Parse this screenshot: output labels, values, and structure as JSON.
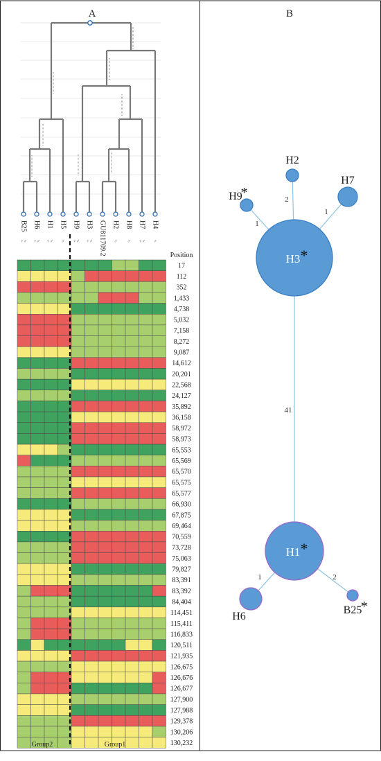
{
  "panels": {
    "a_label": "A",
    "b_label": "B"
  },
  "sample_labels": [
    "B25",
    "H6",
    "H1",
    "H5",
    "H9",
    "H3",
    "GU811709.2",
    "H2",
    "H8",
    "H7",
    "H4"
  ],
  "sample_symbols": [
    "♀♂",
    "♀♂",
    "♀♂",
    "♂",
    "♀♂",
    "♀♂",
    "",
    "♂",
    "♂",
    "♀♂",
    "♂"
  ],
  "positions_header": "Position",
  "positions": [
    "17",
    "112",
    "352",
    "1,433",
    "4,738",
    "5,032",
    "7,158",
    "8,272",
    "9,087",
    "14,612",
    "20,201",
    "22,568",
    "24,127",
    "35,892",
    "36,158",
    "58,972",
    "58,973",
    "65,553",
    "65,569",
    "65,570",
    "65,575",
    "65,577",
    "66,930",
    "67,875",
    "69,464",
    "70,559",
    "73,728",
    "75,063",
    "79,827",
    "83,391",
    "83,392",
    "84,404",
    "114,451",
    "115,411",
    "116,833",
    "120,511",
    "121,935",
    "126,675",
    "126,676",
    "126,677",
    "127,900",
    "127,988",
    "129,378",
    "130,206",
    "130,232"
  ],
  "heatmap_colors": {
    "G": "#3fa35f",
    "L": "#a8cf6e",
    "Y": "#f6ea7a",
    "R": "#e85c5c"
  },
  "heatmap_rows": [
    "GGGGGGGLLGG",
    "YYYYLRRRRRR",
    "RRRRLLLLLLL",
    "LLLLLLRRRLL",
    "YYYYGGGGGGG",
    "RRRRLLLLLLL",
    "RRRRLLLLLLL",
    "RRRRLLLLLLL",
    "YYYYLLLLLLL",
    "GGGGRRRRRRR",
    "LLLLGGGGGGG",
    "GGGGYYYYYYY",
    "LLLLGGGGGGG",
    "GGGGRRRRRRR",
    "GGGGYYYYYYY",
    "GGGGRRRRRRR",
    "GGGGRRRRRRR",
    "YYYLGGGGGGG",
    "RGGGLLLLLLL",
    "LLLLRRRRRRR",
    "LLLLYYYYYYY",
    "LLLLRRRRRRR",
    "GGGGLLLLLLL",
    "YYYYGGGGGGG",
    "YYYYLLLLLLL",
    "GGGGRRRRRRR",
    "LLLLRRRRRRR",
    "LLLLRRRRRRR",
    "YYYYGGGGGGG",
    "YYYYLLLLLLL",
    "LRRRGGGGGGR",
    "LLLLGGGGGGG",
    "LLLLYYYYYYY",
    "LRRRLLLLLLL",
    "LRRRLLLLLLL",
    "GYGGGGGGYYG",
    "YYYYRRRRRRR",
    "LLLLYYYYYYY",
    "LRRRYYYYYYR",
    "LRRRGGGGGGR",
    "YYYYLLLLLLL",
    "YYYYGGGGGGG",
    "LLLLRRRRRRR",
    "LLLLYYYYYYL",
    "LLLLYYYYYYY"
  ],
  "groups": {
    "left": "Group2",
    "right": "Group1"
  },
  "network": {
    "star": "*",
    "nodes": [
      {
        "id": "H3",
        "label": "H3",
        "star": true,
        "label_inside": true
      },
      {
        "id": "H1",
        "label": "H1",
        "star": true,
        "label_inside": true
      },
      {
        "id": "H2",
        "label": "H2",
        "star": false,
        "label_inside": false
      },
      {
        "id": "H7",
        "label": "H7",
        "star": false,
        "label_inside": false
      },
      {
        "id": "H9",
        "label": "H9",
        "star": true,
        "label_inside": false
      },
      {
        "id": "H6",
        "label": "H6",
        "star": false,
        "label_inside": false
      },
      {
        "id": "B25",
        "label": "B25",
        "star": true,
        "label_inside": false
      }
    ],
    "edges": [
      {
        "from": "H3",
        "to": "H2",
        "label": "2"
      },
      {
        "from": "H3",
        "to": "H7",
        "label": "1"
      },
      {
        "from": "H3",
        "to": "H9",
        "label": "1"
      },
      {
        "from": "H3",
        "to": "H1",
        "label": "41"
      },
      {
        "from": "H1",
        "to": "H6",
        "label": "1"
      },
      {
        "from": "H1",
        "to": "B25",
        "label": "2"
      }
    ]
  }
}
